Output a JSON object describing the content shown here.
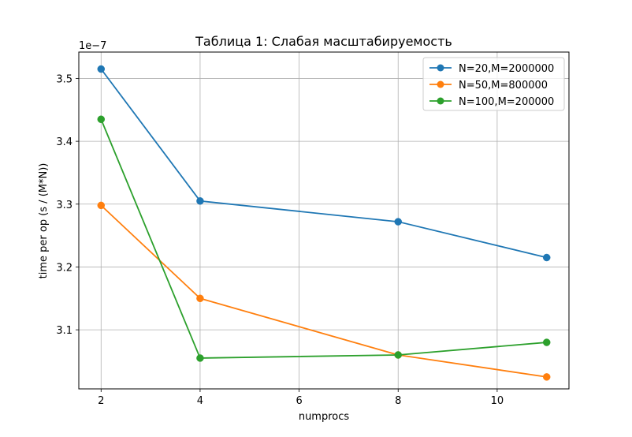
{
  "chart_data": {
    "type": "line",
    "title": "Таблица 1: Слабая масштабируемость",
    "xlabel": "numprocs",
    "ylabel": "time per op (s / (M*N))",
    "y_offset_label": "1e−7",
    "y_scale": 1e-07,
    "xlim": [
      1.55,
      11.45
    ],
    "ylim": [
      3.006,
      3.542
    ],
    "x_ticks": [
      2,
      4,
      6,
      8,
      10
    ],
    "x_tick_labels": [
      "2",
      "4",
      "6",
      "8",
      "10"
    ],
    "y_ticks": [
      3.1,
      3.2,
      3.3,
      3.4,
      3.5
    ],
    "y_tick_labels": [
      "3.1",
      "3.2",
      "3.3",
      "3.4",
      "3.5"
    ],
    "grid": true,
    "legend_position": "upper-right",
    "x": [
      2,
      4,
      8,
      11
    ],
    "series": [
      {
        "name": "N=20,M=2000000",
        "color": "#1f77b4",
        "marker": "circle",
        "values": [
          3.515,
          3.305,
          3.272,
          3.215
        ]
      },
      {
        "name": "N=50,M=800000",
        "color": "#ff7f0e",
        "marker": "circle",
        "values": [
          3.298,
          3.15,
          3.06,
          3.025
        ]
      },
      {
        "name": "N=100,M=200000",
        "color": "#2ca02c",
        "marker": "circle",
        "values": [
          3.435,
          3.055,
          3.06,
          3.08
        ]
      }
    ]
  }
}
